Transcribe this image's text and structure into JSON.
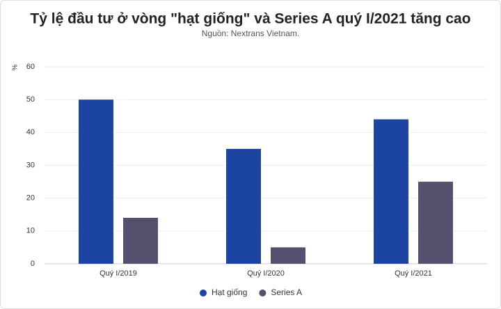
{
  "chart_data": {
    "type": "bar",
    "title": "Tỷ lệ đầu tư ở vòng \"hạt giống\" và Series A quý I/2021 tăng cao",
    "subtitle": "Nguồn: Nextrans Vietnam.",
    "y_label": "%",
    "categories": [
      "Quý I/2019",
      "Quý I/2020",
      "Quý I/2021"
    ],
    "series": [
      {
        "name": "Hạt giống",
        "color": "#1c44a1",
        "values": [
          50,
          35,
          44
        ]
      },
      {
        "name": "Series A",
        "color": "#54506e",
        "values": [
          14,
          5,
          25
        ]
      }
    ],
    "ylim": [
      0,
      60
    ],
    "yticks": [
      0,
      10,
      20,
      30,
      40,
      50,
      60
    ],
    "grid": true,
    "legend": "bottom"
  }
}
